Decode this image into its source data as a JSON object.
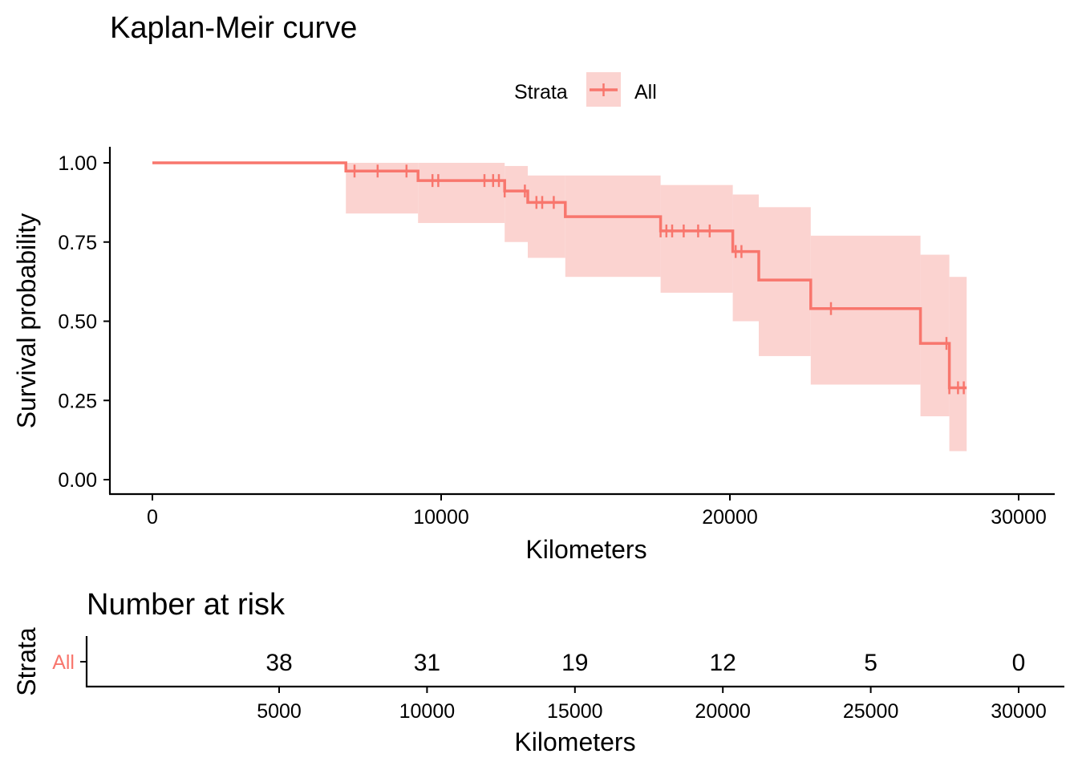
{
  "title": "Kaplan-Meir curve",
  "legend": {
    "title": "Strata",
    "entry": "All"
  },
  "colors": {
    "curve": "#F8766D",
    "band": "#FBD3D0",
    "axis": "#000000"
  },
  "chart_data": [
    {
      "type": "line",
      "subtype": "kaplan-meier",
      "title": "Kaplan-Meir curve",
      "xlabel": "Kilometers",
      "ylabel": "Survival probability",
      "xlim": [
        0,
        30000
      ],
      "ylim": [
        0,
        1
      ],
      "xticks": [
        "0",
        "10000",
        "20000",
        "30000"
      ],
      "yticks": [
        "0.00",
        "0.25",
        "0.50",
        "0.75",
        "1.00"
      ],
      "legend_position": "top",
      "grid": false,
      "series": [
        {
          "name": "All",
          "steps": [
            {
              "x": 0,
              "y": 1.0,
              "lower": 1.0,
              "upper": 1.0
            },
            {
              "x": 6700,
              "y": 0.974,
              "lower": 0.84,
              "upper": 1.0
            },
            {
              "x": 9200,
              "y": 0.944,
              "lower": 0.81,
              "upper": 1.0
            },
            {
              "x": 12200,
              "y": 0.911,
              "lower": 0.75,
              "upper": 0.99
            },
            {
              "x": 13000,
              "y": 0.875,
              "lower": 0.7,
              "upper": 0.96
            },
            {
              "x": 14300,
              "y": 0.83,
              "lower": 0.64,
              "upper": 0.96
            },
            {
              "x": 17600,
              "y": 0.785,
              "lower": 0.59,
              "upper": 0.93
            },
            {
              "x": 20100,
              "y": 0.72,
              "lower": 0.5,
              "upper": 0.9
            },
            {
              "x": 21000,
              "y": 0.63,
              "lower": 0.39,
              "upper": 0.86
            },
            {
              "x": 22800,
              "y": 0.54,
              "lower": 0.3,
              "upper": 0.77
            },
            {
              "x": 26600,
              "y": 0.43,
              "lower": 0.2,
              "upper": 0.71
            },
            {
              "x": 27600,
              "y": 0.29,
              "lower": 0.09,
              "upper": 0.64
            }
          ],
          "x_end": 28200,
          "censor_x": [
            7000,
            7800,
            8800,
            9700,
            9900,
            11500,
            11800,
            12000,
            12200,
            12900,
            13300,
            13500,
            13900,
            17600,
            17800,
            18000,
            18400,
            18900,
            19300,
            20200,
            20400,
            23500,
            27500,
            27600,
            27900,
            28100
          ]
        }
      ]
    },
    {
      "type": "table",
      "title": "Number at risk",
      "xlabel": "Kilometers",
      "ylabel": "Strata",
      "row_label": "All",
      "xlim": [
        1500,
        30000
      ],
      "xticks": [
        "5000",
        "10000",
        "15000",
        "20000",
        "25000",
        "30000"
      ],
      "tick_values": [
        5000,
        10000,
        15000,
        20000,
        25000,
        30000
      ],
      "counts": [
        "38",
        "31",
        "19",
        "12",
        "5",
        "0"
      ]
    }
  ]
}
